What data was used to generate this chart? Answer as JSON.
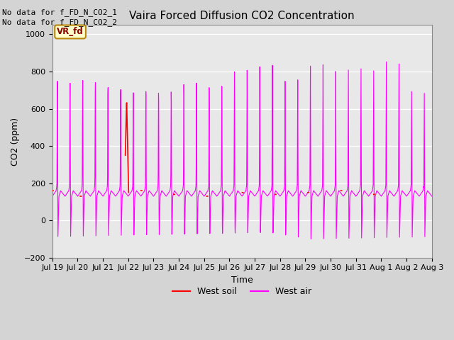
{
  "title": "Vaira Forced Diffusion CO2 Concentration",
  "xlabel": "Time",
  "ylabel": "CO2 (ppm)",
  "ylim": [
    -200,
    1050
  ],
  "yticks": [
    -200,
    0,
    200,
    400,
    600,
    800,
    1000
  ],
  "no_data_text1": "No data for f_FD_N_CO2_1",
  "no_data_text2": "No data for f_FD_N_CO2_2",
  "vr_fd_label": "VR_fd",
  "fig_bg_color": "#d4d4d4",
  "plot_bg_color": "#e8e8e8",
  "legend_soil_color": "#ff0000",
  "legend_air_color": "#ff00ff",
  "legend_soil_label": "West soil",
  "legend_air_label": "West air",
  "x_tick_labels": [
    "Jul 19",
    "Jul 20",
    "Jul 21",
    "Jul 22",
    "Jul 23",
    "Jul 24",
    "Jul 25",
    "Jul 26",
    "Jul 27",
    "Jul 28",
    "Jul 29",
    "Jul 30",
    "Jul 31",
    "Aug 1",
    "Aug 2",
    "Aug 3"
  ],
  "x_tick_positions": [
    0,
    1,
    2,
    3,
    4,
    5,
    6,
    7,
    8,
    9,
    10,
    11,
    12,
    13,
    14,
    15
  ],
  "grid_color": "#ffffff",
  "title_fontsize": 11,
  "axis_fontsize": 9,
  "tick_fontsize": 8
}
